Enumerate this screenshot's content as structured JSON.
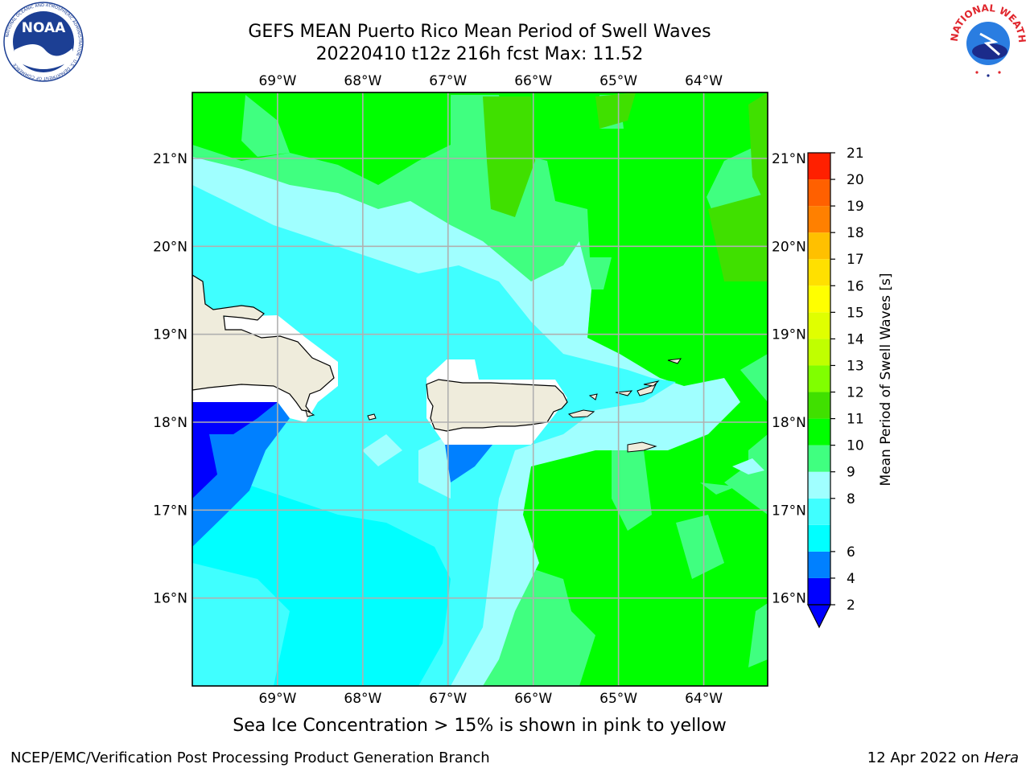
{
  "header": {
    "title_line1": "GEFS MEAN Puerto Rico Mean Period of Swell Waves",
    "title_line2": "20220410 t12z 216h fcst   Max: 11.52"
  },
  "logos": {
    "noaa": {
      "text": "NOAA",
      "ring_text": "NATIONAL OCEANIC AND ATMOSPHERIC ADMINISTRATION · U.S. DEPARTMENT OF COMMERCE"
    },
    "nws": {
      "ring_text": "NATIONAL WEATHER SERVICE"
    }
  },
  "map": {
    "lon_ticks": [
      "69°W",
      "68°W",
      "67°W",
      "66°W",
      "65°W",
      "64°W"
    ],
    "lat_ticks": [
      "21°N",
      "20°N",
      "19°N",
      "18°N",
      "17°N",
      "16°N"
    ],
    "extent": {
      "lon_min": -70.0,
      "lon_max": -63.25,
      "lat_min": 15.0,
      "lat_max": 21.75
    },
    "land_color": "#efecdc",
    "grid_color": "#b0b0b0"
  },
  "colorbar": {
    "label": "Mean Period of Swell Waves [s]",
    "ticks": [
      "2",
      "4",
      "6",
      "7",
      "8",
      "9",
      "10",
      "11",
      "12",
      "13",
      "14",
      "15",
      "16",
      "17",
      "18",
      "19",
      "20",
      "21"
    ],
    "shown_ticks": [
      "21",
      "20",
      "19",
      "18",
      "17",
      "16",
      "15",
      "14",
      "13",
      "12",
      "11",
      "10",
      "9",
      "8",
      "6",
      "4",
      "2"
    ],
    "colors": [
      "#0000ff",
      "#0080ff",
      "#00ffff",
      "#40ffff",
      "#a0ffff",
      "#40ff80",
      "#00ff00",
      "#40e000",
      "#80ff00",
      "#c0ff00",
      "#e0ff00",
      "#ffff00",
      "#ffe000",
      "#ffc000",
      "#ff8000",
      "#ff6000",
      "#ff2000",
      "#ff0000"
    ],
    "under_color": "#0000ff"
  },
  "footer": {
    "note": "Sea Ice Concentration > 15% is shown in pink to yellow",
    "left": "NCEP/EMC/Verification Post Processing Product Generation Branch",
    "date": "12 Apr 2022 on ",
    "machine": "Hera"
  }
}
